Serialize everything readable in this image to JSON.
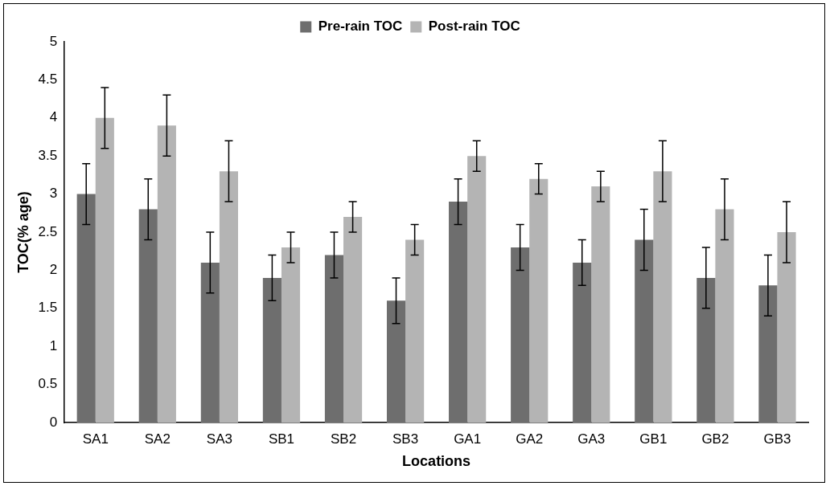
{
  "chart_data": {
    "type": "bar",
    "xlabel": "Locations",
    "ylabel": "TOC(% age)",
    "categories": [
      "SA1",
      "SA2",
      "SA3",
      "SB1",
      "SB2",
      "SB3",
      "GA1",
      "GA2",
      "GA3",
      "GB1",
      "GB2",
      "GB3"
    ],
    "series": [
      {
        "name": "Pre-rain TOC",
        "color": "#6e6e6e",
        "values": [
          3.0,
          2.8,
          2.1,
          1.9,
          2.2,
          1.6,
          2.9,
          2.3,
          2.1,
          2.4,
          1.9,
          1.8
        ],
        "errors": [
          0.4,
          0.4,
          0.4,
          0.3,
          0.3,
          0.3,
          0.3,
          0.3,
          0.3,
          0.4,
          0.4,
          0.4
        ]
      },
      {
        "name": "Post-rain TOC",
        "color": "#b4b4b4",
        "values": [
          4.0,
          3.9,
          3.3,
          2.3,
          2.7,
          2.4,
          3.5,
          3.2,
          3.1,
          3.3,
          2.8,
          2.5
        ],
        "errors": [
          0.4,
          0.4,
          0.4,
          0.2,
          0.2,
          0.2,
          0.2,
          0.2,
          0.2,
          0.4,
          0.4,
          0.4
        ]
      }
    ],
    "ylim": [
      0,
      5
    ],
    "yticks": [
      0,
      0.5,
      1,
      1.5,
      2,
      2.5,
      3,
      3.5,
      4,
      4.5,
      5
    ],
    "grid": false,
    "legend": "top"
  }
}
